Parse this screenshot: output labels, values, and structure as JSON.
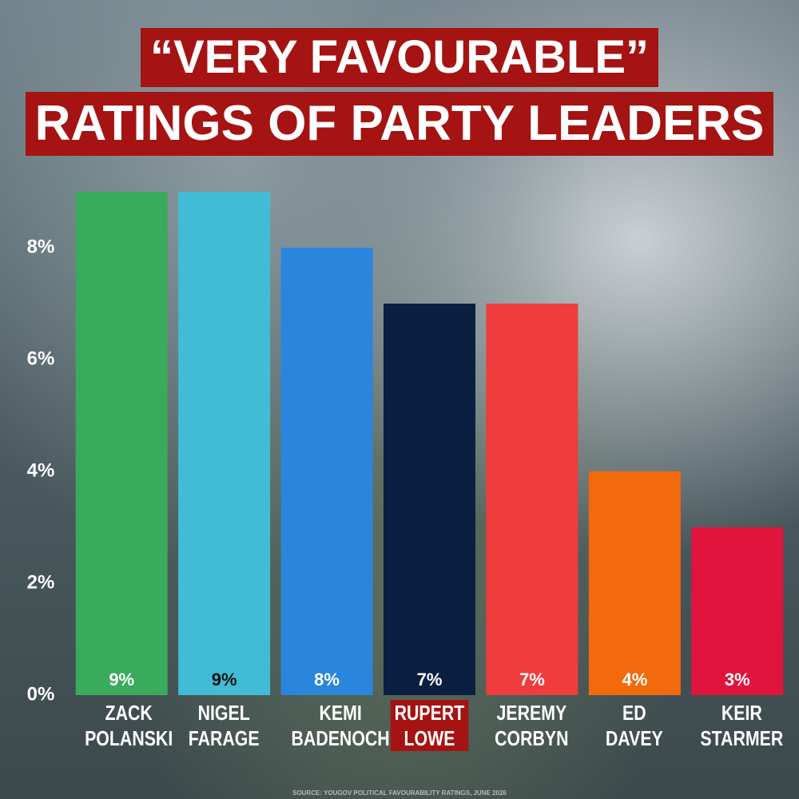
{
  "chart_data": {
    "type": "bar",
    "title_lines": [
      "“VERY FAVOURABLE”",
      "RATINGS OF PARTY LEADERS"
    ],
    "categories": [
      "ZACK POLANSKI",
      "NIGEL FARAGE",
      "KEMI BADENOCH",
      "RUPERT LOWE",
      "JEREMY CORBYN",
      "ED DAVEY",
      "KEIR STARMER"
    ],
    "values": [
      9,
      9,
      8,
      7,
      7,
      4,
      3
    ],
    "value_labels": [
      "9%",
      "9%",
      "8%",
      "7%",
      "7%",
      "4%",
      "3%"
    ],
    "colors": [
      "#3aaa5c",
      "#42bcd6",
      "#2a86dd",
      "#0b1f40",
      "#f03c3c",
      "#f36a0c",
      "#e0143c"
    ],
    "value_label_colors": [
      "#ffffff",
      "#111111",
      "#ffffff",
      "#ffffff",
      "#ffffff",
      "#ffffff",
      "#ffffff"
    ],
    "highlighted_category": 3,
    "ylim": [
      0,
      9
    ],
    "yticks": [
      {
        "value": 0,
        "label": "0%"
      },
      {
        "value": 2,
        "label": "2%"
      },
      {
        "value": 4,
        "label": "4%"
      },
      {
        "value": 6,
        "label": "6%"
      },
      {
        "value": 8,
        "label": "8%"
      }
    ],
    "source": "SOURCE: YOUGOV POLITICAL FAVOURABILITY RATINGS, JUNE 2026"
  }
}
